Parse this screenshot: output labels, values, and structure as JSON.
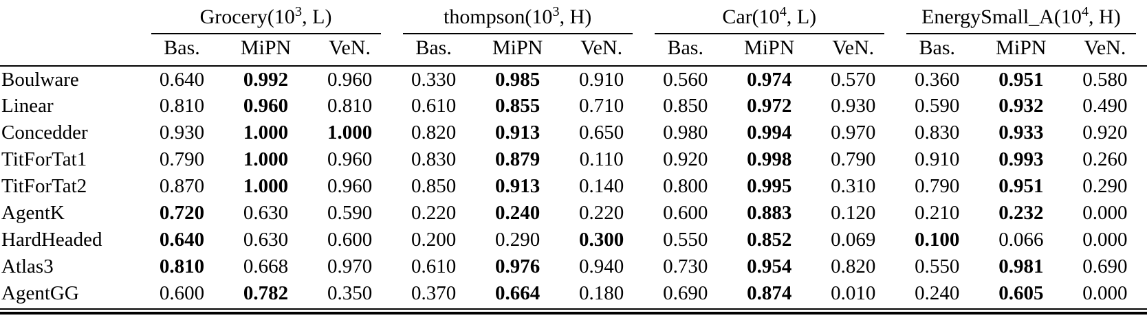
{
  "table": {
    "groups": [
      {
        "pre": "Grocery(10",
        "exp": "3",
        "post": ", L)"
      },
      {
        "pre": "thompson(10",
        "exp": "3",
        "post": ", H)"
      },
      {
        "pre": "Car(10",
        "exp": "4",
        "post": ", L)"
      },
      {
        "pre": "EnergySmall_A(10",
        "exp": "4",
        "post": ", H)"
      }
    ],
    "subheaders": [
      "Bas.",
      "MiPN",
      "VeN."
    ],
    "rows": [
      {
        "label": "Boulware",
        "cells": [
          [
            "0.640",
            0
          ],
          [
            "0.992",
            1
          ],
          [
            "0.960",
            0
          ],
          [
            "0.330",
            0
          ],
          [
            "0.985",
            1
          ],
          [
            "0.910",
            0
          ],
          [
            "0.560",
            0
          ],
          [
            "0.974",
            1
          ],
          [
            "0.570",
            0
          ],
          [
            "0.360",
            0
          ],
          [
            "0.951",
            1
          ],
          [
            "0.580",
            0
          ]
        ]
      },
      {
        "label": "Linear",
        "cells": [
          [
            "0.810",
            0
          ],
          [
            "0.960",
            1
          ],
          [
            "0.810",
            0
          ],
          [
            "0.610",
            0
          ],
          [
            "0.855",
            1
          ],
          [
            "0.710",
            0
          ],
          [
            "0.850",
            0
          ],
          [
            "0.972",
            1
          ],
          [
            "0.930",
            0
          ],
          [
            "0.590",
            0
          ],
          [
            "0.932",
            1
          ],
          [
            "0.490",
            0
          ]
        ]
      },
      {
        "label": "Concedder",
        "cells": [
          [
            "0.930",
            0
          ],
          [
            "1.000",
            1
          ],
          [
            "1.000",
            1
          ],
          [
            "0.820",
            0
          ],
          [
            "0.913",
            1
          ],
          [
            "0.650",
            0
          ],
          [
            "0.980",
            0
          ],
          [
            "0.994",
            1
          ],
          [
            "0.970",
            0
          ],
          [
            "0.830",
            0
          ],
          [
            "0.933",
            1
          ],
          [
            "0.920",
            0
          ]
        ]
      },
      {
        "label": "TitForTat1",
        "cells": [
          [
            "0.790",
            0
          ],
          [
            "1.000",
            1
          ],
          [
            "0.960",
            0
          ],
          [
            "0.830",
            0
          ],
          [
            "0.879",
            1
          ],
          [
            "0.110",
            0
          ],
          [
            "0.920",
            0
          ],
          [
            "0.998",
            1
          ],
          [
            "0.790",
            0
          ],
          [
            "0.910",
            0
          ],
          [
            "0.993",
            1
          ],
          [
            "0.260",
            0
          ]
        ]
      },
      {
        "label": "TitForTat2",
        "cells": [
          [
            "0.870",
            0
          ],
          [
            "1.000",
            1
          ],
          [
            "0.960",
            0
          ],
          [
            "0.850",
            0
          ],
          [
            "0.913",
            1
          ],
          [
            "0.140",
            0
          ],
          [
            "0.800",
            0
          ],
          [
            "0.995",
            1
          ],
          [
            "0.310",
            0
          ],
          [
            "0.790",
            0
          ],
          [
            "0.951",
            1
          ],
          [
            "0.290",
            0
          ]
        ]
      },
      {
        "label": "AgentK",
        "cells": [
          [
            "0.720",
            1
          ],
          [
            "0.630",
            0
          ],
          [
            "0.590",
            0
          ],
          [
            "0.220",
            0
          ],
          [
            "0.240",
            1
          ],
          [
            "0.220",
            0
          ],
          [
            "0.600",
            0
          ],
          [
            "0.883",
            1
          ],
          [
            "0.120",
            0
          ],
          [
            "0.210",
            0
          ],
          [
            "0.232",
            1
          ],
          [
            "0.000",
            0
          ]
        ]
      },
      {
        "label": "HardHeaded",
        "cells": [
          [
            "0.640",
            1
          ],
          [
            "0.630",
            0
          ],
          [
            "0.600",
            0
          ],
          [
            "0.200",
            0
          ],
          [
            "0.290",
            0
          ],
          [
            "0.300",
            1
          ],
          [
            "0.550",
            0
          ],
          [
            "0.852",
            1
          ],
          [
            "0.069",
            0
          ],
          [
            "0.100",
            1
          ],
          [
            "0.066",
            0
          ],
          [
            "0.000",
            0
          ]
        ]
      },
      {
        "label": "Atlas3",
        "cells": [
          [
            "0.810",
            1
          ],
          [
            "0.668",
            0
          ],
          [
            "0.970",
            0
          ],
          [
            "0.610",
            0
          ],
          [
            "0.976",
            1
          ],
          [
            "0.940",
            0
          ],
          [
            "0.730",
            0
          ],
          [
            "0.954",
            1
          ],
          [
            "0.820",
            0
          ],
          [
            "0.550",
            0
          ],
          [
            "0.981",
            1
          ],
          [
            "0.690",
            0
          ]
        ]
      },
      {
        "label": "AgentGG",
        "cells": [
          [
            "0.600",
            0
          ],
          [
            "0.782",
            1
          ],
          [
            "0.350",
            0
          ],
          [
            "0.370",
            0
          ],
          [
            "0.664",
            1
          ],
          [
            "0.180",
            0
          ],
          [
            "0.690",
            0
          ],
          [
            "0.874",
            1
          ],
          [
            "0.010",
            0
          ],
          [
            "0.240",
            0
          ],
          [
            "0.605",
            1
          ],
          [
            "0.000",
            0
          ]
        ]
      }
    ]
  },
  "colors": {
    "text": "#000000",
    "background": "#ffffff",
    "rule": "#000000"
  }
}
